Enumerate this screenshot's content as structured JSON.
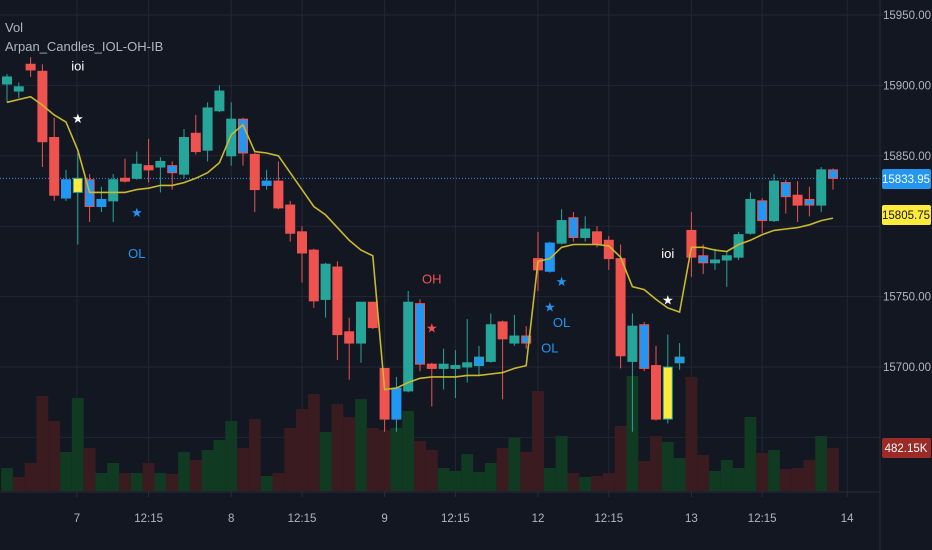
{
  "legend": {
    "volume_title": "Vol",
    "indicator_title": "Arpan_Candles_IOL-OH-IB"
  },
  "colors": {
    "background": "#131722",
    "grid": "#232734",
    "bull": "#26a69a",
    "bear": "#ef5350",
    "inside": "#2196f3",
    "special": "#ffeb3b",
    "line": "#c9b92c",
    "vol_bull": "#113a22",
    "vol_bear": "#3a1c20",
    "axis_text": "#b2b5be",
    "last_price_tag": "#2196f3",
    "line_tag": "#ffeb3b",
    "volume_tag": "#9c2a27"
  },
  "tags": {
    "last_price": "15833.95",
    "line_value": "15805.75",
    "volume": "482.15K"
  },
  "chart_data": {
    "type": "candlestick",
    "title": "Arpan_Candles_IOL-OH-IB",
    "ylim": [
      15620,
      15960
    ],
    "y_ticks": [
      "15950.00",
      "15900.00",
      "15850.00",
      "15750.00",
      "15700.00"
    ],
    "y_tick_values": [
      15950,
      15900,
      15850,
      15750,
      15700
    ],
    "grid_values": [
      15650,
      15700,
      15750,
      15800,
      15850,
      15900,
      15950
    ],
    "x_ticks": [
      {
        "label": "7",
        "bar": 5.93
      },
      {
        "label": "12:15",
        "bar": 12
      },
      {
        "label": "8",
        "bar": 19
      },
      {
        "label": "12:15",
        "bar": 25
      },
      {
        "label": "9",
        "bar": 32
      },
      {
        "label": "12:15",
        "bar": 38
      },
      {
        "label": "12",
        "bar": 45
      },
      {
        "label": "12:15",
        "bar": 51
      },
      {
        "label": "13",
        "bar": 58
      },
      {
        "label": "12:15",
        "bar": 64
      },
      {
        "label": "14",
        "bar": 71.2
      }
    ],
    "candle_fields": [
      "open",
      "high",
      "low",
      "close",
      "style"
    ],
    "candles": [
      [
        15901,
        15908,
        15888,
        15906,
        "g"
      ],
      [
        15896,
        15902,
        15891,
        15899,
        "g"
      ],
      [
        15915,
        15920,
        15906,
        15911,
        "r"
      ],
      [
        15910,
        15915,
        15842,
        15860,
        "r"
      ],
      [
        15863,
        15877,
        15818,
        15822,
        "r"
      ],
      [
        15833,
        15840,
        15818,
        15820,
        "b"
      ],
      [
        15834,
        15852,
        15787,
        15824,
        "y"
      ],
      [
        15833,
        15837,
        15803,
        15814,
        "br"
      ],
      [
        15819,
        15828,
        15810,
        15814,
        "b"
      ],
      [
        15818,
        15837,
        15803,
        15833,
        "g"
      ],
      [
        15834,
        15848,
        15831,
        15832,
        "r"
      ],
      [
        15834,
        15853,
        15833,
        15844,
        "g"
      ],
      [
        15843,
        15862,
        15831,
        15840,
        "r"
      ],
      [
        15842,
        15849,
        15824,
        15846,
        "g"
      ],
      [
        15843,
        15846,
        15826,
        15838,
        "br"
      ],
      [
        15837,
        15869,
        15834,
        15863,
        "g"
      ],
      [
        15866,
        15879,
        15851,
        15853,
        "r"
      ],
      [
        15854,
        15888,
        15846,
        15884,
        "g"
      ],
      [
        15882,
        15900,
        15881,
        15896,
        "g"
      ],
      [
        15850,
        15888,
        15843,
        15876,
        "g"
      ],
      [
        15876,
        15877,
        15843,
        15852,
        "br"
      ],
      [
        15851,
        15852,
        15810,
        15826,
        "r"
      ],
      [
        15832,
        15840,
        15826,
        15829,
        "b"
      ],
      [
        15832,
        15846,
        15812,
        15813,
        "r"
      ],
      [
        15815,
        15818,
        15789,
        15795,
        "r"
      ],
      [
        15796,
        15800,
        15760,
        15781,
        "r"
      ],
      [
        15783,
        15784,
        15742,
        15747,
        "r"
      ],
      [
        15748,
        15774,
        15735,
        15773,
        "g"
      ],
      [
        15771,
        15775,
        15705,
        15723,
        "r"
      ],
      [
        15725,
        15735,
        15691,
        15717,
        "r"
      ],
      [
        15717,
        15746,
        15703,
        15746,
        "g"
      ],
      [
        15746,
        15746,
        15727,
        15728,
        "r"
      ],
      [
        15699,
        15699,
        15654,
        15663,
        "r"
      ],
      [
        15663,
        15693,
        15654,
        15685,
        "b"
      ],
      [
        15683,
        15754,
        15682,
        15746,
        "g"
      ],
      [
        15745,
        15748,
        15697,
        15702,
        "br"
      ],
      [
        15702,
        15703,
        15672,
        15699,
        "r"
      ],
      [
        15699,
        15713,
        15684,
        15702,
        "g"
      ],
      [
        15699,
        15712,
        15678,
        15701,
        "g"
      ],
      [
        15700,
        15734,
        15689,
        15703,
        "g"
      ],
      [
        15701,
        15715,
        15694,
        15707,
        "bg"
      ],
      [
        15704,
        15738,
        15703,
        15730,
        "g"
      ],
      [
        15732,
        15733,
        15677,
        15720,
        "r"
      ],
      [
        15717,
        15737,
        15715,
        15722,
        "g"
      ],
      [
        15717,
        15729,
        15713,
        15722,
        "br"
      ],
      [
        15777,
        15796,
        15754,
        15769,
        "r"
      ],
      [
        15768,
        15789,
        15767,
        15788,
        "b"
      ],
      [
        15788,
        15812,
        15787,
        15804,
        "g"
      ],
      [
        15806,
        15810,
        15789,
        15792,
        "br"
      ],
      [
        15792,
        15807,
        15789,
        15798,
        "g"
      ],
      [
        15796,
        15800,
        15785,
        15787,
        "r"
      ],
      [
        15790,
        15793,
        15769,
        15777,
        "r"
      ],
      [
        15777,
        15787,
        15699,
        15708,
        "r"
      ],
      [
        15704,
        15738,
        15654,
        15729,
        "g"
      ],
      [
        15730,
        15732,
        15697,
        15699,
        "br"
      ],
      [
        15701,
        15715,
        15662,
        15663,
        "r"
      ],
      [
        15663,
        15723,
        15660,
        15700,
        "y"
      ],
      [
        15703,
        15717,
        15698,
        15707,
        "bg"
      ],
      [
        15797,
        15810,
        15764,
        15778,
        "r"
      ],
      [
        15779,
        15787,
        15766,
        15774,
        "br"
      ],
      [
        15774,
        15784,
        15769,
        15776,
        "g"
      ],
      [
        15776,
        15782,
        15757,
        15779,
        "g"
      ],
      [
        15778,
        15796,
        15776,
        15794,
        "g"
      ],
      [
        15795,
        15824,
        15794,
        15819,
        "g"
      ],
      [
        15818,
        15820,
        15795,
        15804,
        "br"
      ],
      [
        15804,
        15837,
        15803,
        15832,
        "g"
      ],
      [
        15831,
        15833,
        15809,
        15821,
        "br"
      ],
      [
        15822,
        15832,
        15803,
        15815,
        "r"
      ],
      [
        15819,
        15828,
        15807,
        15815,
        "br"
      ],
      [
        15815,
        15842,
        15810,
        15840,
        "g"
      ],
      [
        15840,
        15841,
        15826,
        15833.95,
        "br"
      ]
    ],
    "line_series": {
      "name": "moving average",
      "values": [
        15888,
        15890,
        15892,
        15886,
        15879,
        15874,
        15854,
        15824,
        15824,
        15824,
        15824,
        15826,
        15827,
        15829,
        15829,
        15831,
        15834,
        15838,
        15845,
        15865,
        15872,
        15853,
        15852,
        15850,
        15838,
        15826,
        15814,
        15808,
        15799,
        15790,
        15783,
        15779,
        15684,
        15685,
        15689,
        15692,
        15693,
        15693,
        15693,
        15694,
        15694,
        15695,
        15696,
        15699,
        15701,
        15775,
        15777,
        15785,
        15787,
        15787,
        15787,
        15786,
        15778,
        15757,
        15755,
        15748,
        15742,
        15739,
        15785,
        15785,
        15783,
        15782,
        15787,
        15790,
        15794,
        15797,
        15798,
        15799,
        15801,
        15804,
        15805.75
      ]
    },
    "volume_k": {
      "values": [
        258,
        157,
        314,
        1064,
        784,
        437,
        1042,
        482,
        202,
        314,
        202,
        202,
        314,
        202,
        190,
        437,
        347,
        459,
        571,
        784,
        482,
        806,
        168,
        202,
        706,
        918,
        1086,
        661,
        974,
        829,
        1030,
        706,
        683,
        706,
        896,
        560,
        459,
        258,
        224,
        414,
        213,
        314,
        482,
        594,
        437,
        1120,
        258,
        616,
        202,
        157,
        168,
        202,
        728,
        1288,
        336,
        616,
        549,
        370,
        1277,
        403,
        224,
        347,
        258,
        829,
        426,
        459,
        246,
        258,
        347,
        616,
        482.15
      ],
      "up": [
        1,
        0,
        0,
        0,
        0,
        1,
        1,
        0,
        1,
        1,
        0,
        1,
        0,
        1,
        0,
        1,
        0,
        1,
        1,
        1,
        0,
        0,
        1,
        0,
        0,
        0,
        0,
        1,
        0,
        0,
        1,
        0,
        0,
        1,
        1,
        0,
        0,
        1,
        1,
        1,
        1,
        1,
        0,
        1,
        0,
        0,
        1,
        1,
        0,
        1,
        0,
        0,
        0,
        1,
        0,
        0,
        1,
        1,
        0,
        0,
        1,
        1,
        1,
        1,
        0,
        1,
        0,
        0,
        0,
        1,
        0
      ]
    },
    "markers": [
      {
        "bar": 6,
        "price": 15914,
        "text": "ioi",
        "color": "#ffffff"
      },
      {
        "bar": 6,
        "price": 15877,
        "text": "★",
        "color": "#ffffff"
      },
      {
        "bar": 11,
        "price": 15810,
        "text": "★",
        "color": "#2196f3"
      },
      {
        "bar": 11,
        "price": 15781,
        "text": "OL",
        "color": "#2196f3"
      },
      {
        "bar": 36,
        "price": 15763,
        "text": "OH",
        "color": "#ef5350"
      },
      {
        "bar": 36,
        "price": 15728,
        "text": "★",
        "color": "#ef5350"
      },
      {
        "bar": 46,
        "price": 15743,
        "text": "★",
        "color": "#2196f3"
      },
      {
        "bar": 46,
        "price": 15714,
        "text": "OL",
        "color": "#2196f3"
      },
      {
        "bar": 47,
        "price": 15761,
        "text": "★",
        "color": "#2196f3"
      },
      {
        "bar": 47,
        "price": 15732,
        "text": "OL",
        "color": "#2196f3"
      },
      {
        "bar": 56,
        "price": 15781,
        "text": "ioi",
        "color": "#ffffff"
      },
      {
        "bar": 56,
        "price": 15748,
        "text": "★",
        "color": "#ffffff"
      }
    ]
  }
}
